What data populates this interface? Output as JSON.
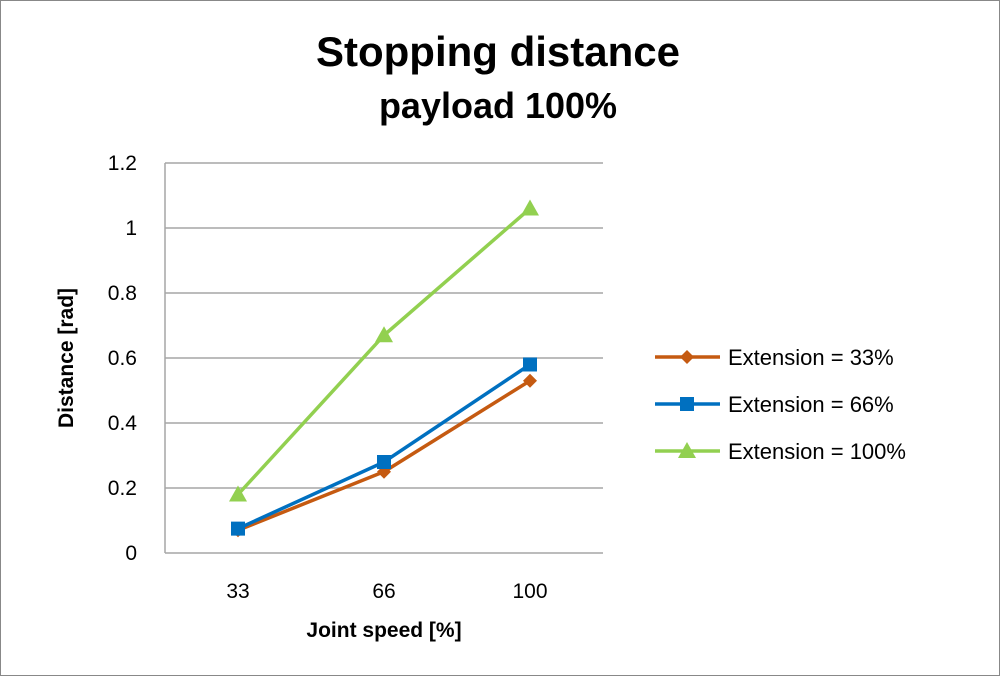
{
  "chart_data": {
    "type": "line",
    "title": "Stopping distance",
    "subtitle": "payload 100%",
    "xlabel": "Joint speed [%]",
    "ylabel": "Distance [rad]",
    "categories": [
      "33",
      "66",
      "100"
    ],
    "ylim": [
      0,
      1.2
    ],
    "yticks": [
      "0",
      "0.2",
      "0.4",
      "0.6",
      "0.8",
      "1",
      "1.2"
    ],
    "grid": true,
    "legend_position": "right",
    "series": [
      {
        "name": "Extension = 33%",
        "values": [
          0.07,
          0.25,
          0.53
        ],
        "color": "#C55A11",
        "marker": "diamond"
      },
      {
        "name": "Extension = 66%",
        "values": [
          0.075,
          0.28,
          0.58
        ],
        "color": "#0070C0",
        "marker": "square"
      },
      {
        "name": "Extension = 100%",
        "values": [
          0.18,
          0.67,
          1.06
        ],
        "color": "#92D050",
        "marker": "triangle"
      }
    ]
  }
}
